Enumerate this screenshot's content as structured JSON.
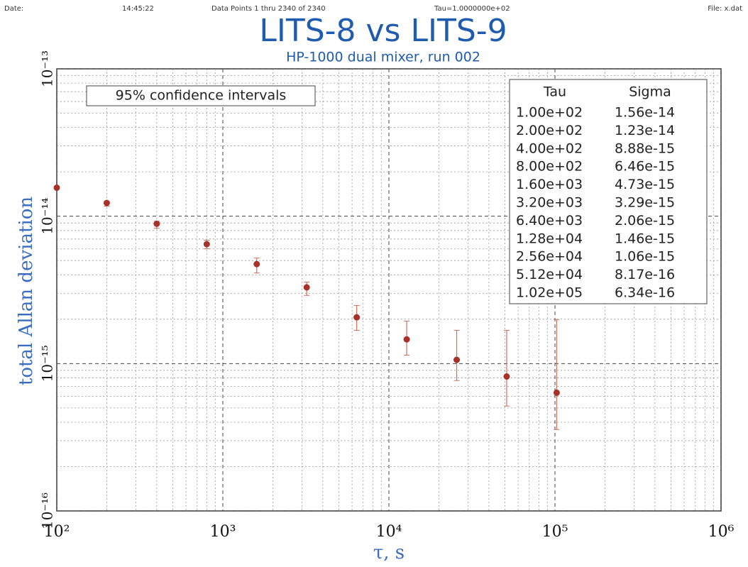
{
  "header": {
    "date": "Date:",
    "time": "14:45:22",
    "points": "Data Points 1 thru 2340 of 2340",
    "tau": "Tau=1.0000000e+02",
    "file": "File: x.dat"
  },
  "chart_data": {
    "type": "scatter",
    "title": "LITS-8  vs LITS-9",
    "subtitle": "HP-1000 dual mixer, run 002",
    "annotation": "95% confidence intervals",
    "xlabel": "τ, s",
    "ylabel": "total Allan deviation",
    "xscale": "log",
    "yscale": "log",
    "grid": true,
    "xlim": [
      100,
      1000000
    ],
    "ylim": [
      1e-16,
      1e-13
    ],
    "xticks": [
      {
        "value": 100,
        "label": "10²"
      },
      {
        "value": 1000,
        "label": "10³"
      },
      {
        "value": 10000,
        "label": "10⁴"
      },
      {
        "value": 100000,
        "label": "10⁵"
      },
      {
        "value": 1000000,
        "label": "10⁶"
      }
    ],
    "yticks": [
      {
        "value": 1e-16,
        "label": "10⁻¹⁶"
      },
      {
        "value": 1e-15,
        "label": "10⁻¹⁵"
      },
      {
        "value": 1e-14,
        "label": "10⁻¹⁴"
      },
      {
        "value": 1e-13,
        "label": "10⁻¹³"
      }
    ],
    "table_headers": [
      "Tau",
      "Sigma"
    ],
    "x": [
      100,
      200,
      400,
      800,
      1600,
      3200,
      6400,
      12800,
      25600,
      51200,
      102400
    ],
    "x_labels": [
      "1.00e+02",
      "2.00e+02",
      "4.00e+02",
      "8.00e+02",
      "1.60e+03",
      "3.20e+03",
      "6.40e+03",
      "1.28e+04",
      "2.56e+04",
      "5.12e+04",
      "1.02e+05"
    ],
    "series": [
      {
        "color": "#a8322a",
        "error_color": "#d0705e",
        "values": [
          1.56e-14,
          1.23e-14,
          8.88e-15,
          6.46e-15,
          4.73e-15,
          3.29e-15,
          2.06e-15,
          1.46e-15,
          1.06e-15,
          8.17e-16,
          6.34e-16
        ],
        "value_labels": [
          "1.56e-14",
          "1.23e-14",
          "8.88e-15",
          "6.46e-15",
          "4.73e-15",
          "3.29e-15",
          "2.06e-15",
          "1.46e-15",
          "1.06e-15",
          "8.17e-16",
          "6.34e-16"
        ],
        "ci_low": [
          1.54e-14,
          1.17e-14,
          8.28e-15,
          6.01e-15,
          4.12e-15,
          2.9e-15,
          1.68e-15,
          1.14e-15,
          7.67e-16,
          5.15e-16,
          3.57e-16
        ],
        "ci_high": [
          1.58e-14,
          1.26e-14,
          9.25e-15,
          6.87e-15,
          5.2e-15,
          3.57e-15,
          2.48e-15,
          1.94e-15,
          1.68e-15,
          1.68e-15,
          1.99e-15
        ]
      }
    ]
  }
}
